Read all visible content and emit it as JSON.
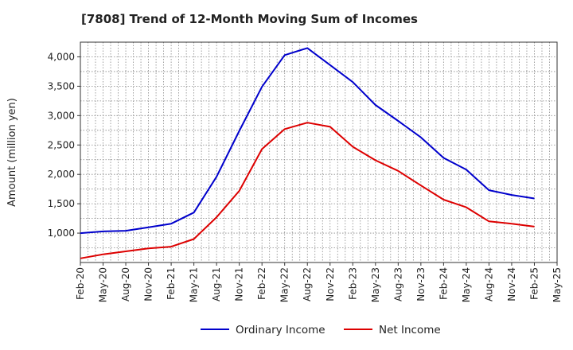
{
  "chart_data": {
    "type": "line",
    "title": "[7808]  Trend of 12-Month Moving Sum of Incomes",
    "xlabel": "",
    "ylabel": "Amount (million yen)",
    "categories": [
      "Feb-20",
      "May-20",
      "Aug-20",
      "Nov-20",
      "Feb-21",
      "May-21",
      "Aug-21",
      "Nov-21",
      "Feb-22",
      "May-22",
      "Aug-22",
      "Nov-22",
      "Feb-23",
      "May-23",
      "Aug-23",
      "Nov-23",
      "Feb-24",
      "May-24",
      "Aug-24",
      "Nov-24",
      "Feb-25",
      "May-25"
    ],
    "ylim": [
      500,
      4250
    ],
    "yticks": [
      1000,
      1500,
      2000,
      2500,
      3000,
      3500,
      4000
    ],
    "ytick_labels": [
      "1,000",
      "1,500",
      "2,000",
      "2,500",
      "3,000",
      "3,500",
      "4,000"
    ],
    "grid": true,
    "legend_position": "bottom-center",
    "series": [
      {
        "name": "Ordinary Income",
        "color": "#0000cc",
        "values": [
          1000,
          1030,
          1040,
          1100,
          1160,
          1350,
          1960,
          2740,
          3490,
          4030,
          4150,
          3860,
          3570,
          3180,
          2910,
          2630,
          2280,
          2080,
          1730,
          1650,
          1590,
          null
        ]
      },
      {
        "name": "Net Income",
        "color": "#dd0000",
        "values": [
          570,
          640,
          690,
          740,
          770,
          900,
          1270,
          1720,
          2430,
          2770,
          2880,
          2810,
          2470,
          2240,
          2060,
          1810,
          1570,
          1440,
          1200,
          1160,
          1110,
          null
        ]
      }
    ]
  }
}
